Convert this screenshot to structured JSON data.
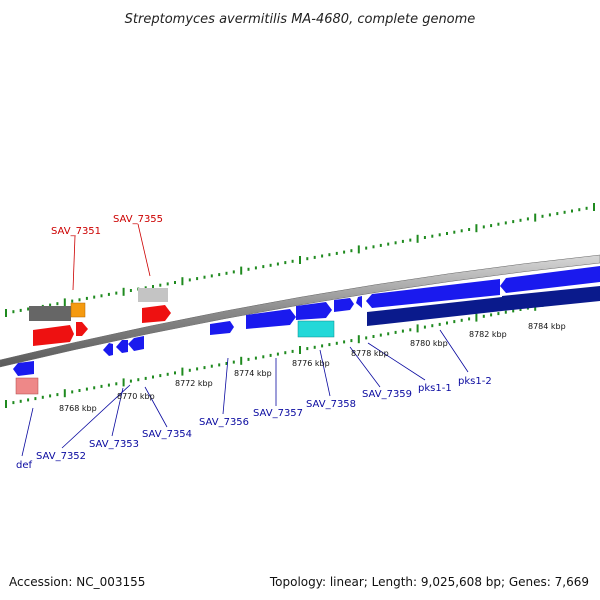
{
  "title": "Streptomyces avermitilis MA-4680, complete genome",
  "footer": {
    "accession": "Accession: NC_003155",
    "summary": "Topology: linear; Length: 9,025,608 bp; Genes: 7,669"
  },
  "colors": {
    "forward_gene": "#1a1aee",
    "reverse_gene": "#0a1a8c",
    "rna": "#ee1111",
    "rna_pseudo": "#ee8888",
    "orange": "#f59a10",
    "grey": "#777777",
    "light_grey": "#c4c4c4",
    "cyan": "#22d8d8",
    "tick": "#1f8a1f",
    "label_blue": "#0a0aa0",
    "label_red": "#cc0000"
  },
  "scale_labels": [
    "8768 kbp",
    "8770 kbp",
    "8772 kbp",
    "8774 kbp",
    "8776 kbp",
    "8778 kbp",
    "8780 kbp",
    "8782 kbp",
    "8784 kbp"
  ],
  "gene_labels": [
    {
      "text": "SAV_7351",
      "color": "red"
    },
    {
      "text": "SAV_7355",
      "color": "red"
    },
    {
      "text": "def",
      "color": "blue"
    },
    {
      "text": "SAV_7352",
      "color": "blue"
    },
    {
      "text": "SAV_7353",
      "color": "blue"
    },
    {
      "text": "SAV_7354",
      "color": "blue"
    },
    {
      "text": "SAV_7356",
      "color": "blue"
    },
    {
      "text": "SAV_7357",
      "color": "blue"
    },
    {
      "text": "SAV_7358",
      "color": "blue"
    },
    {
      "text": "SAV_7359",
      "color": "blue"
    },
    {
      "text": "pks1-1",
      "color": "blue"
    },
    {
      "text": "pks1-2",
      "color": "blue"
    }
  ]
}
